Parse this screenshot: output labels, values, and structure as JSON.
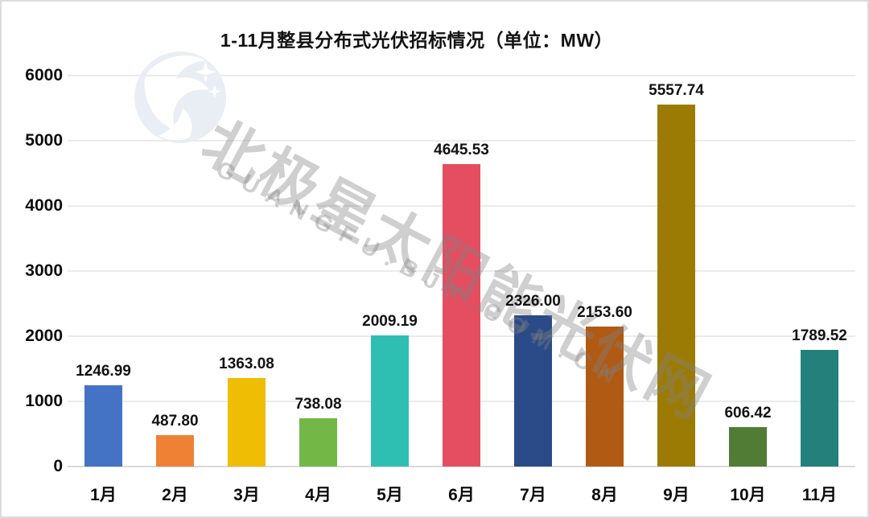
{
  "title": "1-11月整县分布式光伏招标情况（单位：MW）",
  "watermark": {
    "logo": "polaris-star-swan-logo",
    "line1": "北极星太阳能光伏网",
    "line2": "GUANGFU.BJX.COM.CN"
  },
  "chart_data": {
    "type": "bar",
    "title": "1-11月整县分布式光伏招标情况（单位：MW）",
    "unit": "MW",
    "categories": [
      "1月",
      "2月",
      "3月",
      "4月",
      "5月",
      "6月",
      "7月",
      "8月",
      "9月",
      "10月",
      "11月"
    ],
    "values": [
      1246.99,
      487.8,
      1363.08,
      738.08,
      2009.19,
      4645.53,
      2326.0,
      2153.6,
      5557.74,
      606.42,
      1789.52
    ],
    "bar_colors": [
      "#4473C5",
      "#EE8133",
      "#EFBD04",
      "#73B847",
      "#2FBFB2",
      "#E44E60",
      "#2A4B87",
      "#B05A14",
      "#9C7B05",
      "#507C35",
      "#23807A"
    ],
    "ylim": [
      0,
      6000
    ],
    "yticks": [
      0,
      1000,
      2000,
      3000,
      4000,
      5000,
      6000
    ],
    "grid": true,
    "legend": false,
    "xlabel": "",
    "ylabel": "",
    "value_label_decimals": 2
  },
  "colors": {
    "grid": "#ebebeb",
    "zero_line": "#d9d9d9",
    "text": "#121212",
    "frame_border": "#dcdcdc",
    "watermark_text": "rgba(130,130,130,0.38)",
    "logo_fill": "#E9EEF5"
  }
}
